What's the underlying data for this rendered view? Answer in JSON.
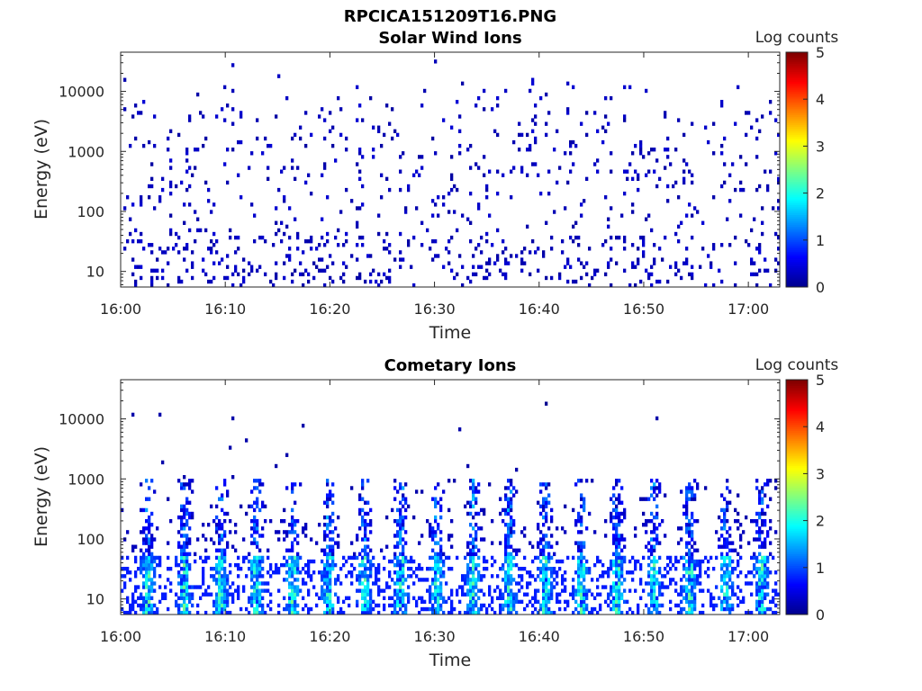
{
  "figure": {
    "title": "RPCICA151209T16.PNG",
    "colormap": [
      "#00008f",
      "#0000ff",
      "#0080ff",
      "#00ffff",
      "#80ff80",
      "#ffff00",
      "#ff8000",
      "#ff0000",
      "#800000"
    ]
  },
  "chart_data": [
    {
      "type": "heatmap",
      "title": "Solar Wind Ions",
      "xlabel": "Time",
      "ylabel": "Energy (eV)",
      "x_ticks": [
        "16:00",
        "16:10",
        "16:20",
        "16:30",
        "16:40",
        "16:50",
        "17:00"
      ],
      "x_range": [
        "16:00",
        "17:03"
      ],
      "y_scale": "log",
      "y_ticks": [
        "10",
        "100",
        "1000",
        "10000"
      ],
      "y_range": [
        5.5,
        45000
      ],
      "colorbar": {
        "label": "Log counts",
        "range": [
          0,
          5
        ],
        "ticks": [
          "0",
          "1",
          "2",
          "3",
          "4",
          "5"
        ]
      },
      "description_values": {
        "dominant_level": 0.1,
        "pattern": "sparse scattered single counts across all energies, denser near 10-40 eV"
      }
    },
    {
      "type": "heatmap",
      "title": "Cometary Ions",
      "xlabel": "Time",
      "ylabel": "Energy (eV)",
      "x_ticks": [
        "16:00",
        "16:10",
        "16:20",
        "16:30",
        "16:40",
        "16:50",
        "17:00"
      ],
      "x_range": [
        "16:00",
        "17:03"
      ],
      "y_scale": "log",
      "y_ticks": [
        "10",
        "100",
        "1000",
        "10000"
      ],
      "y_range": [
        5.5,
        45000
      ],
      "colorbar": {
        "label": "Log counts",
        "range": [
          0,
          5
        ],
        "ticks": [
          "0",
          "1",
          "2",
          "3",
          "4",
          "5"
        ]
      },
      "description_values": {
        "max_level": 2.2,
        "pattern": "periodic vertical bursts every ~3 min from 10 eV up to ~1000 eV, brightest at 10-40 eV"
      }
    }
  ]
}
